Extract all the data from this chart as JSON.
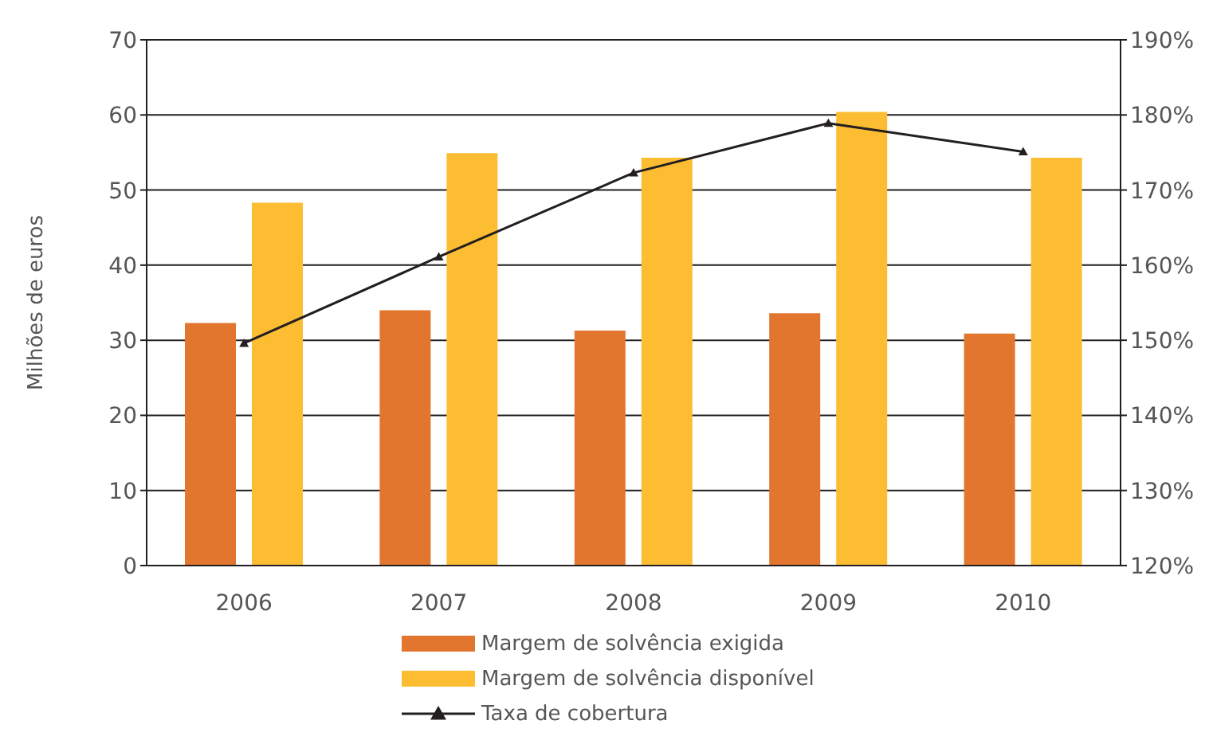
{
  "chart_data": {
    "type": "bar",
    "ylabel": "Milhões de euros",
    "categories": [
      "2006",
      "2007",
      "2008",
      "2009",
      "2010"
    ],
    "series": [
      {
        "name": "Margem de solvência exigida",
        "color": "#e3762f",
        "values": [
          32.3,
          34.0,
          31.3,
          33.6,
          30.9
        ]
      },
      {
        "name": "Margem de solvência disponível",
        "color": "#fdbd33",
        "values": [
          48.3,
          54.9,
          54.3,
          60.4,
          54.3
        ]
      },
      {
        "name": "Taxa de cobertura",
        "type": "line",
        "axis": "y2",
        "color": "#231f20",
        "marker": "triangle",
        "values": [
          149.6,
          161.1,
          172.3,
          178.9,
          175.1
        ]
      }
    ],
    "ylim": [
      0,
      70
    ],
    "yticks": [
      0,
      10,
      20,
      30,
      40,
      50,
      60,
      70
    ],
    "y2lim": [
      120,
      190
    ],
    "y2ticks": [
      {
        "value": 120,
        "label": "120%"
      },
      {
        "value": 130,
        "label": "130%"
      },
      {
        "value": 140,
        "label": "140%"
      },
      {
        "value": 150,
        "label": "150%"
      },
      {
        "value": 160,
        "label": "160%"
      },
      {
        "value": 170,
        "label": "170%"
      },
      {
        "value": 180,
        "label": "180%"
      },
      {
        "value": 190,
        "label": "190%"
      }
    ],
    "grid": "y",
    "legend": "bottom"
  }
}
